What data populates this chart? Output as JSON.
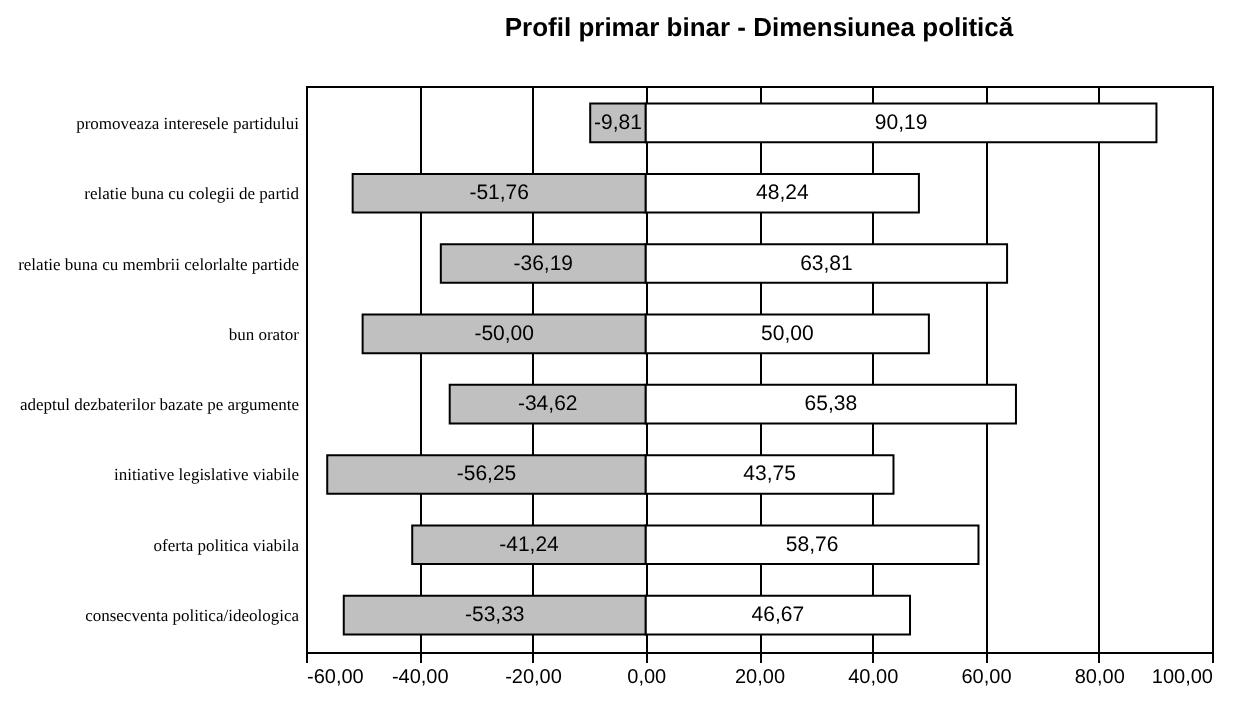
{
  "chart_data": {
    "type": "bar",
    "orientation": "horizontal",
    "stacked": true,
    "title": "Profil primar binar - Dimensiunea politică",
    "categories": [
      "promoveaza interesele partidului",
      "relatie buna cu colegii de partid",
      "relatie buna cu membrii celorlalte partide",
      "bun orator",
      "adeptul dezbaterilor bazate pe argumente",
      "initiative legislative viabile",
      "oferta politica viabila",
      "consecventa politica/ideologica"
    ],
    "series": [
      {
        "color": "#c0c0c0",
        "values": [
          -9.81,
          -51.76,
          -36.19,
          -50.0,
          -34.62,
          -56.25,
          -41.24,
          -53.33
        ],
        "value_labels": [
          "-9,81",
          "-51,76",
          "-36,19",
          "-50,00",
          "-34,62",
          "-56,25",
          "-41,24",
          "-53,33"
        ]
      },
      {
        "color": "#ffffff",
        "values": [
          90.19,
          48.24,
          63.81,
          50.0,
          65.38,
          43.75,
          58.76,
          46.67
        ],
        "value_labels": [
          "90,19",
          "48,24",
          "63,81",
          "50,00",
          "65,38",
          "43,75",
          "58,76",
          "46,67"
        ]
      }
    ],
    "xlim": [
      -60,
      100
    ],
    "xticks": [
      {
        "value": -60,
        "label": "-60,00"
      },
      {
        "value": -40,
        "label": "-40,00"
      },
      {
        "value": -20,
        "label": "-20,00"
      },
      {
        "value": 0,
        "label": "0,00"
      },
      {
        "value": 20,
        "label": "20,00"
      },
      {
        "value": 40,
        "label": "40,00"
      },
      {
        "value": 60,
        "label": "60,00"
      },
      {
        "value": 80,
        "label": "80,00"
      },
      {
        "value": 100,
        "label": "100,00"
      }
    ],
    "grid": "x"
  }
}
